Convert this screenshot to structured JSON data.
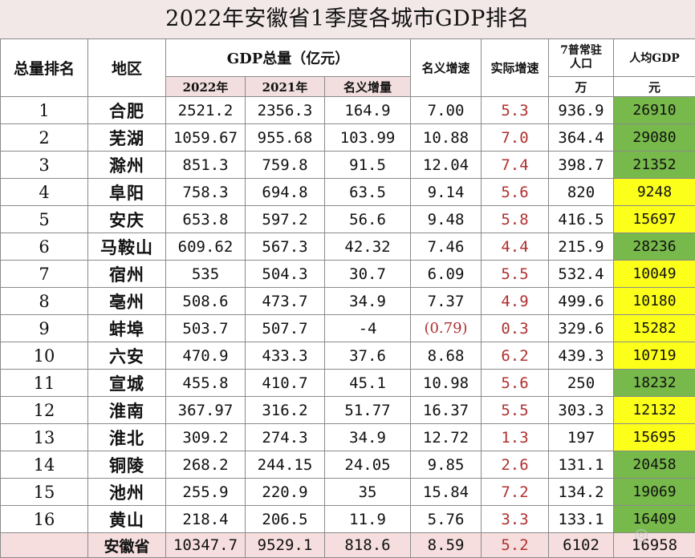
{
  "title": "2022年安徽省1季度各城市GDP排名",
  "headers": {
    "rank": "总量排名",
    "region": "地区",
    "gdp_group": "GDP总量（亿元）",
    "y2022": "2022年",
    "y2021": "2021年",
    "nominal_inc": "名义增量",
    "nominal_rate": "名义增速",
    "real_rate": "实际增速",
    "pop_line1": "7普常驻",
    "pop_line2": "人口",
    "pop_unit": "万",
    "per_capita": "人均GDP",
    "per_capita_unit": "元"
  },
  "colors": {
    "green": "#77b94a",
    "yellow": "#fcff1a",
    "title_bg": "#f2e8e8",
    "real_rate_text": "#b03030"
  },
  "rows": [
    {
      "rank": "1",
      "city": "合肥",
      "g2022": "2521.2",
      "g2021": "2356.3",
      "inc": "164.9",
      "nom": "7.00",
      "real": "5.3",
      "pop": "936.9",
      "pc": "26910",
      "pc_color": "green"
    },
    {
      "rank": "2",
      "city": "芜湖",
      "g2022": "1059.67",
      "g2021": "955.68",
      "inc": "103.99",
      "nom": "10.88",
      "real": "7.0",
      "pop": "364.4",
      "pc": "29080",
      "pc_color": "green"
    },
    {
      "rank": "3",
      "city": "滁州",
      "g2022": "851.3",
      "g2021": "759.8",
      "inc": "91.5",
      "nom": "12.04",
      "real": "7.4",
      "pop": "398.7",
      "pc": "21352",
      "pc_color": "green"
    },
    {
      "rank": "4",
      "city": "阜阳",
      "g2022": "758.3",
      "g2021": "694.8",
      "inc": "63.5",
      "nom": "9.14",
      "real": "5.6",
      "pop": "820",
      "pc": "9248",
      "pc_color": "yellow"
    },
    {
      "rank": "5",
      "city": "安庆",
      "g2022": "653.8",
      "g2021": "597.2",
      "inc": "56.6",
      "nom": "9.48",
      "real": "5.8",
      "pop": "416.5",
      "pc": "15697",
      "pc_color": "yellow"
    },
    {
      "rank": "6",
      "city": "马鞍山",
      "g2022": "609.62",
      "g2021": "567.3",
      "inc": "42.32",
      "nom": "7.46",
      "real": "4.4",
      "pop": "215.9",
      "pc": "28236",
      "pc_color": "green"
    },
    {
      "rank": "7",
      "city": "宿州",
      "g2022": "535",
      "g2021": "504.3",
      "inc": "30.7",
      "nom": "6.09",
      "real": "5.5",
      "pop": "532.4",
      "pc": "10049",
      "pc_color": "yellow"
    },
    {
      "rank": "8",
      "city": "亳州",
      "g2022": "508.6",
      "g2021": "473.7",
      "inc": "34.9",
      "nom": "7.37",
      "real": "4.9",
      "pop": "499.6",
      "pc": "10180",
      "pc_color": "yellow"
    },
    {
      "rank": "9",
      "city": "蚌埠",
      "g2022": "503.7",
      "g2021": "507.7",
      "inc": "-4",
      "nom": "(0.79)",
      "real": "0.3",
      "pop": "329.6",
      "pc": "15282",
      "pc_color": "yellow",
      "nom_negative": true
    },
    {
      "rank": "10",
      "city": "六安",
      "g2022": "470.9",
      "g2021": "433.3",
      "inc": "37.6",
      "nom": "8.68",
      "real": "6.2",
      "pop": "439.3",
      "pc": "10719",
      "pc_color": "yellow"
    },
    {
      "rank": "11",
      "city": "宣城",
      "g2022": "455.8",
      "g2021": "410.7",
      "inc": "45.1",
      "nom": "10.98",
      "real": "5.6",
      "pop": "250",
      "pc": "18232",
      "pc_color": "green"
    },
    {
      "rank": "12",
      "city": "淮南",
      "g2022": "367.97",
      "g2021": "316.2",
      "inc": "51.77",
      "nom": "16.37",
      "real": "5.5",
      "pop": "303.3",
      "pc": "12132",
      "pc_color": "yellow"
    },
    {
      "rank": "13",
      "city": "淮北",
      "g2022": "309.2",
      "g2021": "274.3",
      "inc": "34.9",
      "nom": "12.72",
      "real": "1.3",
      "pop": "197",
      "pc": "15695",
      "pc_color": "yellow"
    },
    {
      "rank": "14",
      "city": "铜陵",
      "g2022": "268.2",
      "g2021": "244.15",
      "inc": "24.05",
      "nom": "9.85",
      "real": "2.6",
      "pop": "131.1",
      "pc": "20458",
      "pc_color": "green"
    },
    {
      "rank": "15",
      "city": "池州",
      "g2022": "255.9",
      "g2021": "220.9",
      "inc": "35",
      "nom": "15.84",
      "real": "7.2",
      "pop": "134.2",
      "pc": "19069",
      "pc_color": "green"
    },
    {
      "rank": "16",
      "city": "黄山",
      "g2022": "218.4",
      "g2021": "206.5",
      "inc": "11.9",
      "nom": "5.76",
      "real": "3.3",
      "pop": "133.1",
      "pc": "16409",
      "pc_color": "green"
    }
  ],
  "total": {
    "rank": "",
    "city": "安徽省",
    "g2022": "10347.7",
    "g2021": "9529.1",
    "inc": "818.6",
    "nom": "8.59",
    "real": "5.2",
    "pop": "6102",
    "pc": "16958"
  }
}
